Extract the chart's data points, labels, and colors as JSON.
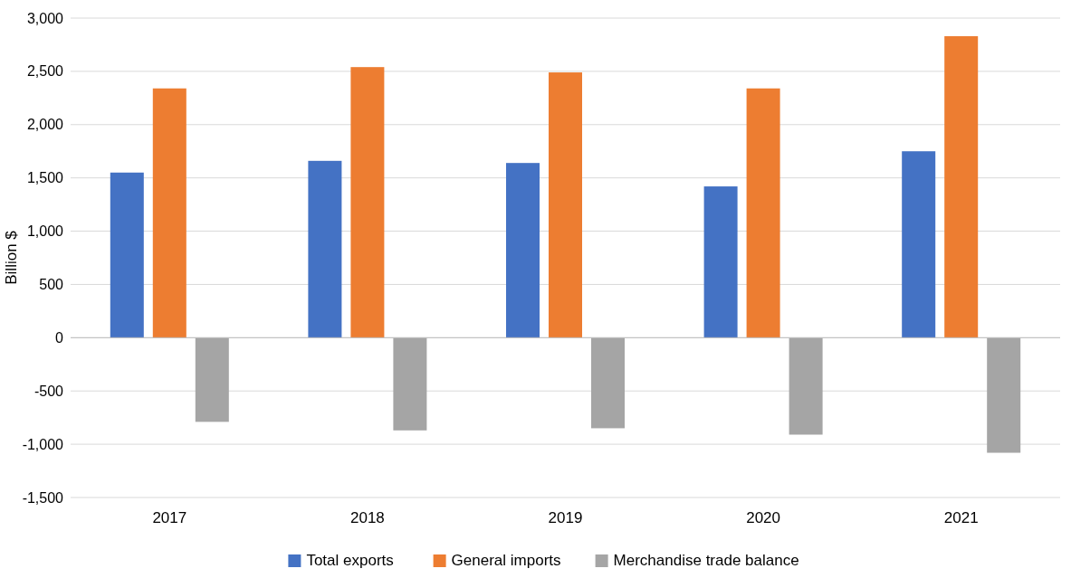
{
  "chart_data": {
    "type": "bar",
    "ylabel": "Billion $",
    "categories": [
      "2017",
      "2018",
      "2019",
      "2020",
      "2021"
    ],
    "series": [
      {
        "name": "Total exports",
        "color": "#4472c4",
        "values": [
          1550,
          1660,
          1640,
          1420,
          1750
        ]
      },
      {
        "name": "General imports",
        "color": "#ed7d31",
        "values": [
          2340,
          2540,
          2490,
          2340,
          2830
        ]
      },
      {
        "name": "Merchandise trade balance",
        "color": "#a5a5a5",
        "values": [
          -790,
          -870,
          -850,
          -910,
          -1080
        ]
      }
    ],
    "ylim": [
      -1500,
      3000
    ],
    "yticks": [
      {
        "value": -1500,
        "label": "-1,500"
      },
      {
        "value": -1000,
        "label": "-1,000"
      },
      {
        "value": -500,
        "label": "-500"
      },
      0,
      500,
      {
        "value": 1000,
        "label": "1,000"
      },
      {
        "value": 1500,
        "label": "1,500"
      },
      {
        "value": 2000,
        "label": "2,000"
      },
      {
        "value": 2500,
        "label": "2,500"
      },
      {
        "value": 3000,
        "label": "3,000"
      }
    ],
    "grid": "y",
    "legend": "bottom"
  }
}
